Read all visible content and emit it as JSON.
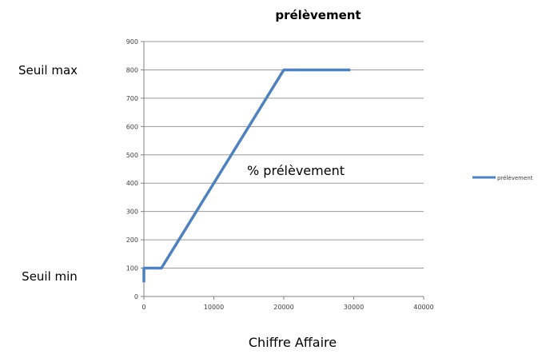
{
  "chart_data": {
    "type": "line",
    "title": "prélèvement",
    "xlabel": "Chiffre Affaire",
    "ylabel": "",
    "xlim": [
      0,
      40000
    ],
    "ylim": [
      0,
      900
    ],
    "x_ticks": [
      0,
      10000,
      20000,
      30000,
      40000
    ],
    "y_ticks": [
      0,
      100,
      200,
      300,
      400,
      500,
      600,
      700,
      800,
      900
    ],
    "grid": true,
    "legend": "right",
    "series": [
      {
        "name": "prélèvement",
        "color": "#4f81bd",
        "x": [
          0,
          0,
          2500,
          20000,
          29500
        ],
        "y": [
          50,
          100,
          100,
          800,
          800
        ]
      }
    ],
    "annotations": {
      "seuil_max": "Seuil max",
      "seuil_min": "Seuil min",
      "percent_label": "% prélèvement"
    }
  }
}
